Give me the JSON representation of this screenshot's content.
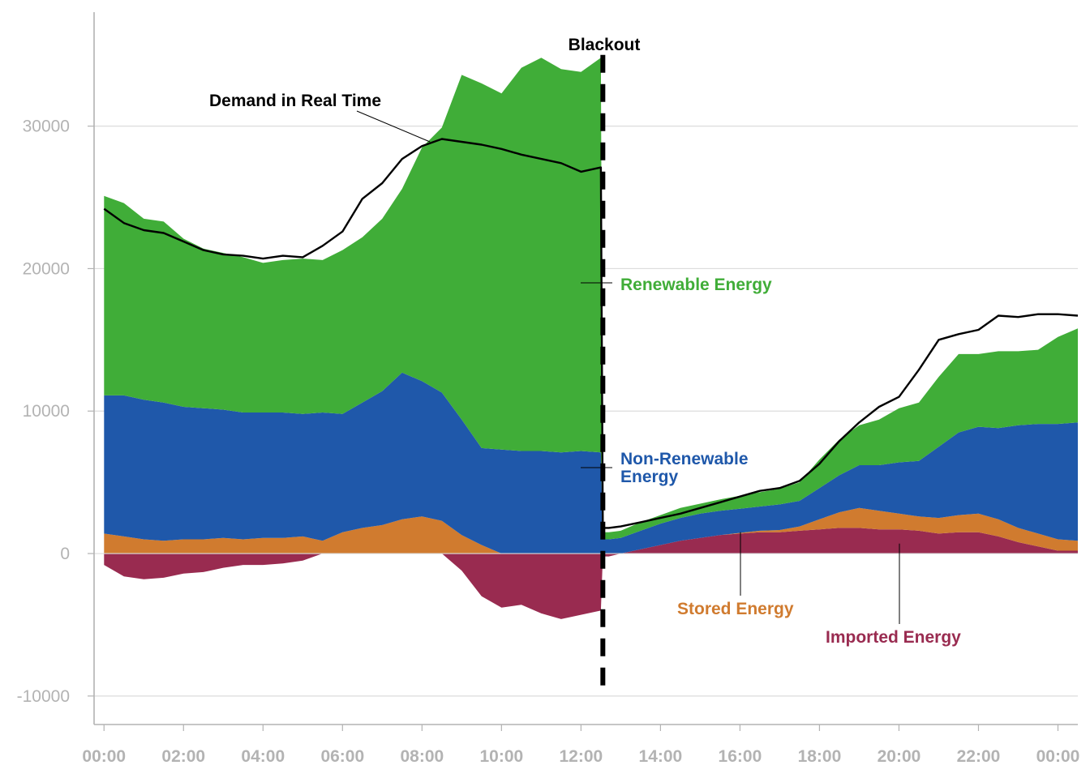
{
  "colors": {
    "renewable": "#40ad38",
    "non_renewable": "#1f58aa",
    "stored": "#d07b2f",
    "imported": "#992b50",
    "demand": "#000000",
    "grid": "#dcdcdc",
    "axis": "#b3b3b3"
  },
  "chart_data": {
    "type": "area",
    "title": "",
    "xlabel": "",
    "ylabel": "",
    "x_tick_labels": [
      "00:00",
      "02:00",
      "04:00",
      "06:00",
      "08:00",
      "10:00",
      "12:00",
      "14:00",
      "16:00",
      "18:00",
      "20:00",
      "22:00",
      "00:00"
    ],
    "y_ticks": [
      -10000,
      0,
      10000,
      20000,
      30000
    ],
    "y_tick_labels": [
      "-10000",
      "0",
      "10000",
      "20000",
      "30000"
    ],
    "xlim": [
      -0.25,
      24.5
    ],
    "ylim": [
      -12000,
      38000
    ],
    "x": [
      0.0,
      0.5,
      1.0,
      1.5,
      2.0,
      2.5,
      3.0,
      3.5,
      4.0,
      4.5,
      5.0,
      5.5,
      6.0,
      6.5,
      7.0,
      7.5,
      8.0,
      8.5,
      9.0,
      9.5,
      10.0,
      10.5,
      11.0,
      11.5,
      12.0,
      12.5,
      12.55,
      12.7,
      13.0,
      13.5,
      14.0,
      14.5,
      15.0,
      15.5,
      16.0,
      16.5,
      17.0,
      17.5,
      18.0,
      18.5,
      19.0,
      19.5,
      20.0,
      20.5,
      21.0,
      21.5,
      22.0,
      22.5,
      23.0,
      23.5,
      24.0,
      24.5
    ],
    "series": [
      {
        "name": "Imported Energy",
        "color_key": "imported",
        "values": [
          -800,
          -1600,
          -1800,
          -1700,
          -1400,
          -1300,
          -1000,
          -800,
          -800,
          -700,
          -500,
          0,
          0,
          0,
          0,
          0,
          0,
          0,
          -1200,
          -3000,
          -3800,
          -3600,
          -4200,
          -4600,
          -4300,
          -4000,
          -200,
          -200,
          0,
          300,
          600,
          900,
          1100,
          1300,
          1400,
          1500,
          1500,
          1600,
          1700,
          1800,
          1800,
          1700,
          1700,
          1600,
          1400,
          1500,
          1500,
          1200,
          800,
          500,
          200,
          200
        ]
      },
      {
        "name": "Stored Energy",
        "color_key": "stored",
        "values": [
          1400,
          1200,
          1000,
          900,
          1000,
          1000,
          1100,
          1000,
          1100,
          1100,
          1200,
          900,
          1500,
          1800,
          2000,
          2400,
          2600,
          2300,
          1300,
          600,
          0,
          0,
          0,
          0,
          0,
          0,
          0,
          0,
          0,
          0,
          0,
          0,
          0,
          0,
          50,
          100,
          150,
          300,
          700,
          1100,
          1400,
          1300,
          1100,
          1000,
          1100,
          1200,
          1300,
          1200,
          1000,
          900,
          800,
          700
        ]
      },
      {
        "name": "Non-Renewable Energy",
        "color_key": "non_renewable",
        "values": [
          9700,
          9900,
          9800,
          9700,
          9300,
          9200,
          9000,
          8900,
          8800,
          8800,
          8600,
          9000,
          8300,
          8800,
          9400,
          10300,
          9500,
          9000,
          8100,
          6800,
          7300,
          7200,
          7200,
          7100,
          7200,
          7100,
          1000,
          1000,
          1100,
          1300,
          1500,
          1600,
          1700,
          1700,
          1700,
          1700,
          1800,
          1800,
          2200,
          2600,
          3000,
          3200,
          3600,
          3900,
          5000,
          5800,
          6100,
          6400,
          7200,
          7700,
          8100,
          8300
        ]
      },
      {
        "name": "Renewable Energy",
        "color_key": "renewable",
        "values": [
          14000,
          13500,
          12700,
          12700,
          11800,
          11200,
          11000,
          10900,
          10500,
          10700,
          10900,
          10700,
          11500,
          11600,
          12100,
          12900,
          16400,
          18600,
          24200,
          25600,
          25000,
          26900,
          27600,
          26900,
          26600,
          27700,
          500,
          500,
          500,
          600,
          600,
          700,
          700,
          800,
          900,
          1000,
          1100,
          1300,
          2000,
          2500,
          2800,
          3200,
          3800,
          4100,
          4900,
          5500,
          5100,
          5400,
          5200,
          5200,
          6100,
          6600
        ]
      },
      {
        "name": "Demand in Real Time",
        "color_key": "demand",
        "kind": "line",
        "values": [
          24200,
          23200,
          22700,
          22500,
          21900,
          21300,
          21000,
          20900,
          20700,
          20900,
          20800,
          21600,
          22600,
          24900,
          26000,
          27700,
          28600,
          29100,
          28900,
          28700,
          28400,
          28000,
          27700,
          27400,
          26800,
          27100,
          1800,
          1800,
          1900,
          2200,
          2500,
          2800,
          3200,
          3600,
          4000,
          4400,
          4600,
          5100,
          6300,
          7900,
          9200,
          10300,
          11000,
          12900,
          15000,
          15400,
          15700,
          16700,
          16600,
          16800,
          16800,
          16700
        ]
      }
    ],
    "annotations": [
      {
        "text": "Blackout",
        "color_key": "demand",
        "x": 12.55
      },
      {
        "text": "Demand in Real Time",
        "color_key": "demand"
      },
      {
        "text": "Renewable Energy",
        "color_key": "renewable"
      },
      {
        "text": "Non-Renewable Energy",
        "color_key": "non_renewable",
        "lines": [
          "Non-Renewable",
          "Energy"
        ]
      },
      {
        "text": "Stored Energy",
        "color_key": "stored"
      },
      {
        "text": "Imported Energy",
        "color_key": "imported"
      }
    ]
  }
}
